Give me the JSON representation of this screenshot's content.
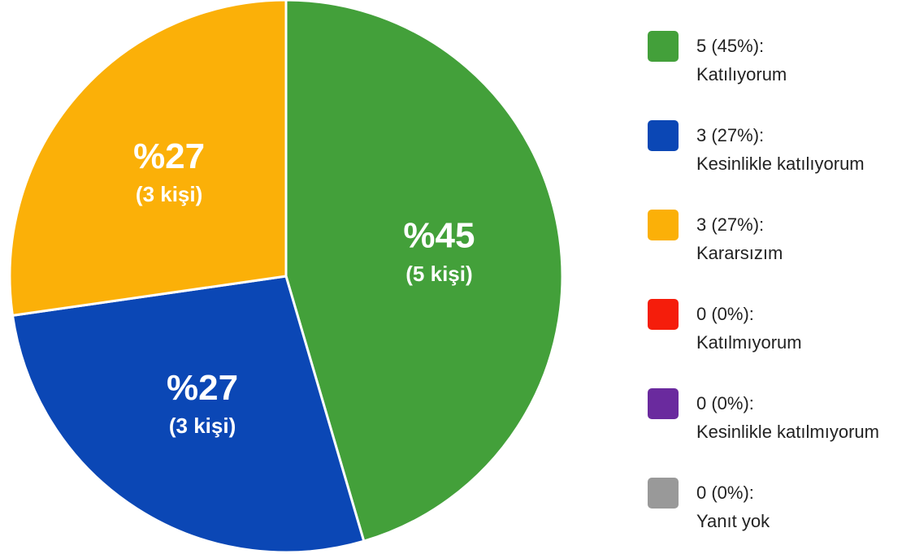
{
  "chart_data": {
    "type": "pie",
    "categories": [
      "Katılıyorum",
      "Kesinlikle katılıyorum",
      "Kararsızım",
      "Katılmıyorum",
      "Kesinlikle katılmıyorum",
      "Yanıt yok"
    ],
    "values": [
      45,
      27,
      27,
      0,
      0,
      0
    ],
    "value_labels": [
      "%45",
      "%27",
      "%27",
      null,
      null,
      null
    ],
    "counts": [
      5,
      3,
      3,
      0,
      0,
      0
    ],
    "count_labels": [
      "(5 kişi)",
      "(3 kişi)",
      "(3 kişi)",
      null,
      null,
      null
    ],
    "legend_labels": [
      "5 (45%):",
      "3 (27%):",
      "3 (27%):",
      "0 (0%):",
      "0 (0%):",
      "0 (0%):"
    ],
    "colors": [
      "#43a03a",
      "#0b47b5",
      "#fbb008",
      "#f51d0b",
      "#6a2a9e",
      "#999999"
    ],
    "legend": "right"
  }
}
